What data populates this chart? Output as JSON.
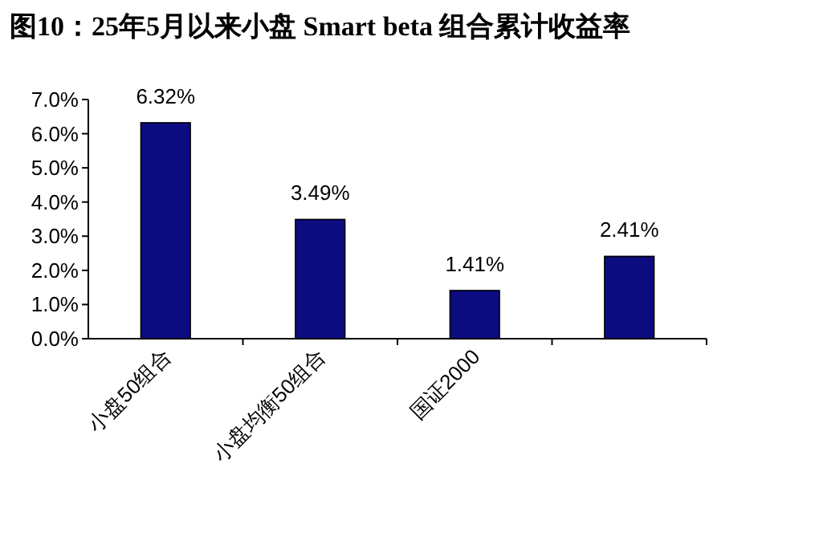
{
  "chart_data": {
    "type": "bar",
    "title": "图10：25年5月以来小盘 Smart beta 组合累计收益率",
    "categories": [
      "小盘50组合",
      "小盘均衡50组合",
      "国证2000",
      null
    ],
    "values": [
      6.32,
      3.49,
      1.41,
      2.41
    ],
    "value_labels": [
      "6.32%",
      "3.49%",
      "1.41%",
      "2.41%"
    ],
    "color": "#0c0c80",
    "ylim": [
      0,
      7
    ],
    "yticks": [
      {
        "value": 0,
        "label": "0.0%"
      },
      {
        "value": 1,
        "label": "1.0%"
      },
      {
        "value": 2,
        "label": "2.0%"
      },
      {
        "value": 3,
        "label": "3.0%"
      },
      {
        "value": 4,
        "label": "4.0%"
      },
      {
        "value": 5,
        "label": "5.0%"
      },
      {
        "value": 6,
        "label": "6.0%"
      },
      {
        "value": 7,
        "label": "7.0%"
      }
    ]
  }
}
